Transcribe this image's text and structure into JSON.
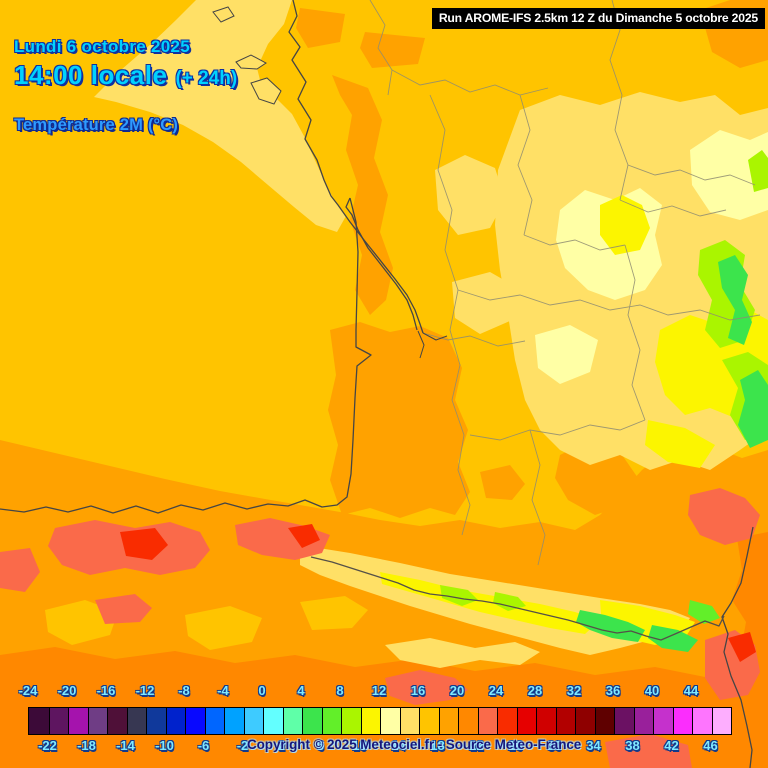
{
  "header": {
    "date_line": "Lundi 6 octobre 2025",
    "time_line": "14:00 locale",
    "time_offset": "(+ 24h)",
    "variable_label": "Température 2M (°C)"
  },
  "run_bar": {
    "text": "Run AROME-IFS 2.5km 12 Z du Dimanche 5 octobre 2025"
  },
  "legend": {
    "unit": "°C",
    "min": -24,
    "max": 46,
    "step_per_cell": 2,
    "top_labels": [
      "-24",
      "-20",
      "-16",
      "-12",
      "-8",
      "-4",
      "0",
      "4",
      "8",
      "12",
      "16",
      "20",
      "24",
      "28",
      "32",
      "36",
      "40",
      "44"
    ],
    "bottom_labels": [
      "-22",
      "-18",
      "-14",
      "-10",
      "-6",
      "-2",
      "2",
      "6",
      "10",
      "14",
      "18",
      "22",
      "26",
      "30",
      "34",
      "38",
      "42",
      "46"
    ],
    "cell_colors": [
      "#3c0a38",
      "#5e1560",
      "#a513ad",
      "#6f3d85",
      "#4f1038",
      "#373752",
      "#10399b",
      "#0022cc",
      "#0808ff",
      "#0066ff",
      "#00a2ff",
      "#3ecbff",
      "#63ffff",
      "#5fffa8",
      "#3ce44c",
      "#62ef29",
      "#aaf500",
      "#fcf500",
      "#ffffa5",
      "#ffe066",
      "#ffc400",
      "#ffa200",
      "#ff8800",
      "#fa6a4a",
      "#f92c00",
      "#e60000",
      "#d00000",
      "#b20000",
      "#8f0000",
      "#5f0000",
      "#6b1163",
      "#99209b",
      "#c531cc",
      "#fb2dfd",
      "#fe75fe",
      "#fdaefe"
    ]
  },
  "footer": {
    "copyright": "Copyright © 2025 Meteociel.fr - Source Meteo-France"
  },
  "colors": {
    "title_cyan": "#00d2ff",
    "variable_label_blue": "#2e9bff",
    "text_outline_navy": "#1030a0",
    "scale_label_cyan": "#7fe9ff",
    "copyright_navy": "#16167a",
    "run_bar_bg": "#000000",
    "run_bar_text": "#ffffff",
    "ocean_gold": "#ffc400",
    "ocean_pale_yellow": "#ffe066",
    "warm_orange": "#ffa200",
    "hot_salmon": "#fa6a4a",
    "mountain_green": "#3ce44c"
  }
}
